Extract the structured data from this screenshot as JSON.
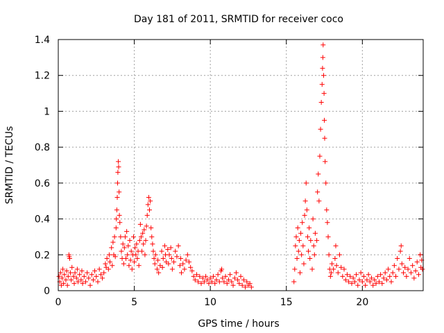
{
  "chart_data": {
    "type": "scatter",
    "title": "Day 181 of 2011, SRMTID for receiver coco",
    "xlabel": "GPS time / hours",
    "ylabel": "SRMTID / TECUs",
    "xlim": [
      0,
      24
    ],
    "ylim": [
      0,
      1.4
    ],
    "x_ticks": [
      0,
      5,
      10,
      15,
      20
    ],
    "x_tick_labels": [
      "0",
      "5",
      "10",
      "15",
      "20"
    ],
    "y_ticks": [
      0,
      0.2,
      0.4,
      0.6,
      0.8,
      1.0,
      1.2,
      1.4
    ],
    "y_tick_labels": [
      "0",
      "0.2",
      "0.4",
      "0.6",
      "0.8",
      "1",
      "1.2",
      "1.4"
    ],
    "grid": true,
    "marker": "+",
    "color": "#ff0000",
    "series": [
      {
        "name": "SRMTID",
        "points": [
          [
            0.05,
            0.08
          ],
          [
            0.1,
            0.05
          ],
          [
            0.15,
            0.1
          ],
          [
            0.2,
            0.03
          ],
          [
            0.25,
            0.07
          ],
          [
            0.3,
            0.12
          ],
          [
            0.35,
            0.04
          ],
          [
            0.4,
            0.09
          ],
          [
            0.5,
            0.06
          ],
          [
            0.55,
            0.11
          ],
          [
            0.6,
            0.03
          ],
          [
            0.65,
            0.08
          ],
          [
            0.7,
            0.2
          ],
          [
            0.72,
            0.19
          ],
          [
            0.75,
            0.18
          ],
          [
            0.8,
            0.1
          ],
          [
            0.85,
            0.06
          ],
          [
            0.9,
            0.13
          ],
          [
            1.0,
            0.08
          ],
          [
            1.05,
            0.04
          ],
          [
            1.1,
            0.1
          ],
          [
            1.2,
            0.07
          ],
          [
            1.25,
            0.12
          ],
          [
            1.3,
            0.05
          ],
          [
            1.4,
            0.09
          ],
          [
            1.5,
            0.06
          ],
          [
            1.55,
            0.11
          ],
          [
            1.6,
            0.04
          ],
          [
            1.7,
            0.08
          ],
          [
            1.8,
            0.05
          ],
          [
            1.9,
            0.1
          ],
          [
            2.0,
            0.07
          ],
          [
            2.1,
            0.03
          ],
          [
            2.2,
            0.09
          ],
          [
            2.3,
            0.06
          ],
          [
            2.4,
            0.11
          ],
          [
            2.5,
            0.08
          ],
          [
            2.6,
            0.05
          ],
          [
            2.7,
            0.12
          ],
          [
            2.8,
            0.09
          ],
          [
            2.9,
            0.07
          ],
          [
            3.0,
            0.1
          ],
          [
            3.1,
            0.15
          ],
          [
            3.15,
            0.13
          ],
          [
            3.2,
            0.18
          ],
          [
            3.3,
            0.12
          ],
          [
            3.35,
            0.2
          ],
          [
            3.4,
            0.16
          ],
          [
            3.5,
            0.24
          ],
          [
            3.55,
            0.14
          ],
          [
            3.6,
            0.27
          ],
          [
            3.65,
            0.2
          ],
          [
            3.7,
            0.3
          ],
          [
            3.75,
            0.19
          ],
          [
            3.8,
            0.35
          ],
          [
            3.82,
            0.4
          ],
          [
            3.85,
            0.45
          ],
          [
            3.88,
            0.52
          ],
          [
            3.9,
            0.6
          ],
          [
            3.92,
            0.66
          ],
          [
            3.95,
            0.72
          ],
          [
            3.97,
            0.69
          ],
          [
            4.0,
            0.55
          ],
          [
            4.02,
            0.42
          ],
          [
            4.05,
            0.38
          ],
          [
            4.1,
            0.3
          ],
          [
            4.15,
            0.22
          ],
          [
            4.2,
            0.18
          ],
          [
            4.25,
            0.26
          ],
          [
            4.3,
            0.15
          ],
          [
            4.35,
            0.24
          ],
          [
            4.4,
            0.3
          ],
          [
            4.45,
            0.18
          ],
          [
            4.5,
            0.33
          ],
          [
            4.55,
            0.2
          ],
          [
            4.6,
            0.25
          ],
          [
            4.65,
            0.14
          ],
          [
            4.7,
            0.28
          ],
          [
            4.75,
            0.17
          ],
          [
            4.8,
            0.22
          ],
          [
            4.85,
            0.12
          ],
          [
            4.9,
            0.2
          ],
          [
            4.95,
            0.3
          ],
          [
            5.0,
            0.16
          ],
          [
            5.05,
            0.24
          ],
          [
            5.1,
            0.2
          ],
          [
            5.15,
            0.26
          ],
          [
            5.2,
            0.18
          ],
          [
            5.25,
            0.22
          ],
          [
            5.3,
            0.14
          ],
          [
            5.35,
            0.28
          ],
          [
            5.4,
            0.37
          ],
          [
            5.45,
            0.3
          ],
          [
            5.5,
            0.22
          ],
          [
            5.55,
            0.32
          ],
          [
            5.6,
            0.26
          ],
          [
            5.65,
            0.34
          ],
          [
            5.7,
            0.2
          ],
          [
            5.75,
            0.28
          ],
          [
            5.8,
            0.36
          ],
          [
            5.85,
            0.42
          ],
          [
            5.9,
            0.48
          ],
          [
            5.95,
            0.52
          ],
          [
            6.0,
            0.45
          ],
          [
            6.05,
            0.5
          ],
          [
            6.1,
            0.35
          ],
          [
            6.15,
            0.3
          ],
          [
            6.2,
            0.26
          ],
          [
            6.25,
            0.22
          ],
          [
            6.3,
            0.18
          ],
          [
            6.35,
            0.15
          ],
          [
            6.4,
            0.2
          ],
          [
            6.5,
            0.12
          ],
          [
            6.55,
            0.17
          ],
          [
            6.6,
            0.1
          ],
          [
            6.7,
            0.14
          ],
          [
            6.8,
            0.22
          ],
          [
            6.85,
            0.13
          ],
          [
            6.9,
            0.18
          ],
          [
            7.0,
            0.25
          ],
          [
            7.05,
            0.2
          ],
          [
            7.1,
            0.16
          ],
          [
            7.2,
            0.23
          ],
          [
            7.25,
            0.15
          ],
          [
            7.3,
            0.2
          ],
          [
            7.4,
            0.24
          ],
          [
            7.45,
            0.18
          ],
          [
            7.5,
            0.12
          ],
          [
            7.6,
            0.16
          ],
          [
            7.7,
            0.22
          ],
          [
            7.8,
            0.19
          ],
          [
            7.9,
            0.25
          ],
          [
            8.0,
            0.14
          ],
          [
            8.05,
            0.18
          ],
          [
            8.1,
            0.1
          ],
          [
            8.2,
            0.15
          ],
          [
            8.3,
            0.12
          ],
          [
            8.4,
            0.17
          ],
          [
            8.5,
            0.2
          ],
          [
            8.6,
            0.16
          ],
          [
            8.7,
            0.13
          ],
          [
            8.8,
            0.11
          ],
          [
            8.9,
            0.08
          ],
          [
            9.0,
            0.06
          ],
          [
            9.1,
            0.09
          ],
          [
            9.2,
            0.05
          ],
          [
            9.3,
            0.08
          ],
          [
            9.4,
            0.04
          ],
          [
            9.5,
            0.07
          ],
          [
            9.6,
            0.05
          ],
          [
            9.7,
            0.08
          ],
          [
            9.8,
            0.06
          ],
          [
            9.9,
            0.04
          ],
          [
            10.0,
            0.07
          ],
          [
            10.1,
            0.05
          ],
          [
            10.2,
            0.08
          ],
          [
            10.3,
            0.04
          ],
          [
            10.4,
            0.06
          ],
          [
            10.5,
            0.09
          ],
          [
            10.6,
            0.05
          ],
          [
            10.7,
            0.11
          ],
          [
            10.75,
            0.12
          ],
          [
            10.8,
            0.07
          ],
          [
            10.9,
            0.05
          ],
          [
            11.0,
            0.08
          ],
          [
            11.1,
            0.04
          ],
          [
            11.2,
            0.06
          ],
          [
            11.3,
            0.09
          ],
          [
            11.4,
            0.05
          ],
          [
            11.5,
            0.03
          ],
          [
            11.6,
            0.07
          ],
          [
            11.7,
            0.1
          ],
          [
            11.8,
            0.06
          ],
          [
            11.9,
            0.04
          ],
          [
            12.0,
            0.08
          ],
          [
            12.1,
            0.03
          ],
          [
            12.2,
            0.06
          ],
          [
            12.3,
            0.02
          ],
          [
            12.4,
            0.05
          ],
          [
            12.5,
            0.03
          ],
          [
            12.6,
            0.04
          ],
          [
            12.7,
            0.02
          ],
          [
            15.5,
            0.05
          ],
          [
            15.55,
            0.12
          ],
          [
            15.6,
            0.25
          ],
          [
            15.65,
            0.3
          ],
          [
            15.7,
            0.18
          ],
          [
            15.75,
            0.35
          ],
          [
            15.8,
            0.22
          ],
          [
            15.85,
            0.28
          ],
          [
            15.9,
            0.1
          ],
          [
            15.95,
            0.32
          ],
          [
            16.0,
            0.2
          ],
          [
            16.05,
            0.38
          ],
          [
            16.1,
            0.25
          ],
          [
            16.15,
            0.15
          ],
          [
            16.2,
            0.42
          ],
          [
            16.25,
            0.5
          ],
          [
            16.3,
            0.6
          ],
          [
            16.35,
            0.45
          ],
          [
            16.4,
            0.3
          ],
          [
            16.45,
            0.22
          ],
          [
            16.5,
            0.35
          ],
          [
            16.55,
            0.18
          ],
          [
            16.6,
            0.28
          ],
          [
            16.7,
            0.12
          ],
          [
            16.75,
            0.4
          ],
          [
            16.8,
            0.25
          ],
          [
            16.85,
            0.2
          ],
          [
            16.9,
            0.32
          ],
          [
            17.0,
            0.28
          ],
          [
            17.05,
            0.55
          ],
          [
            17.1,
            0.65
          ],
          [
            17.15,
            0.5
          ],
          [
            17.2,
            0.75
          ],
          [
            17.25,
            0.9
          ],
          [
            17.3,
            1.05
          ],
          [
            17.35,
            1.15
          ],
          [
            17.38,
            1.24
          ],
          [
            17.4,
            1.3
          ],
          [
            17.42,
            1.37
          ],
          [
            17.45,
            1.2
          ],
          [
            17.48,
            1.1
          ],
          [
            17.5,
            0.95
          ],
          [
            17.52,
            0.85
          ],
          [
            17.55,
            0.72
          ],
          [
            17.6,
            0.6
          ],
          [
            17.65,
            0.45
          ],
          [
            17.7,
            0.38
          ],
          [
            17.75,
            0.3
          ],
          [
            17.8,
            0.2
          ],
          [
            17.85,
            0.12
          ],
          [
            17.9,
            0.08
          ],
          [
            17.95,
            0.1
          ],
          [
            18.0,
            0.15
          ],
          [
            18.1,
            0.12
          ],
          [
            18.2,
            0.18
          ],
          [
            18.25,
            0.25
          ],
          [
            18.3,
            0.14
          ],
          [
            18.4,
            0.1
          ],
          [
            18.5,
            0.2
          ],
          [
            18.6,
            0.13
          ],
          [
            18.7,
            0.08
          ],
          [
            18.8,
            0.12
          ],
          [
            18.9,
            0.06
          ],
          [
            19.0,
            0.09
          ],
          [
            19.1,
            0.05
          ],
          [
            19.2,
            0.08
          ],
          [
            19.3,
            0.04
          ],
          [
            19.4,
            0.07
          ],
          [
            19.5,
            0.05
          ],
          [
            19.6,
            0.09
          ],
          [
            19.7,
            0.03
          ],
          [
            19.8,
            0.06
          ],
          [
            19.9,
            0.1
          ],
          [
            20.0,
            0.05
          ],
          [
            20.1,
            0.08
          ],
          [
            20.2,
            0.03
          ],
          [
            20.3,
            0.06
          ],
          [
            20.4,
            0.09
          ],
          [
            20.5,
            0.05
          ],
          [
            20.6,
            0.07
          ],
          [
            20.7,
            0.03
          ],
          [
            20.8,
            0.06
          ],
          [
            20.9,
            0.04
          ],
          [
            21.0,
            0.08
          ],
          [
            21.1,
            0.05
          ],
          [
            21.2,
            0.09
          ],
          [
            21.3,
            0.04
          ],
          [
            21.4,
            0.07
          ],
          [
            21.5,
            0.1
          ],
          [
            21.6,
            0.06
          ],
          [
            21.7,
            0.12
          ],
          [
            21.8,
            0.08
          ],
          [
            21.9,
            0.05
          ],
          [
            22.0,
            0.1
          ],
          [
            22.1,
            0.14
          ],
          [
            22.2,
            0.08
          ],
          [
            22.3,
            0.18
          ],
          [
            22.4,
            0.12
          ],
          [
            22.5,
            0.22
          ],
          [
            22.55,
            0.25
          ],
          [
            22.6,
            0.15
          ],
          [
            22.7,
            0.1
          ],
          [
            22.8,
            0.13
          ],
          [
            22.9,
            0.08
          ],
          [
            23.0,
            0.12
          ],
          [
            23.1,
            0.18
          ],
          [
            23.2,
            0.1
          ],
          [
            23.3,
            0.14
          ],
          [
            23.4,
            0.07
          ],
          [
            23.5,
            0.11
          ],
          [
            23.6,
            0.16
          ],
          [
            23.7,
            0.09
          ],
          [
            23.8,
            0.2
          ],
          [
            23.85,
            0.13
          ],
          [
            23.9,
            0.17
          ],
          [
            23.95,
            0.12
          ]
        ]
      }
    ]
  }
}
